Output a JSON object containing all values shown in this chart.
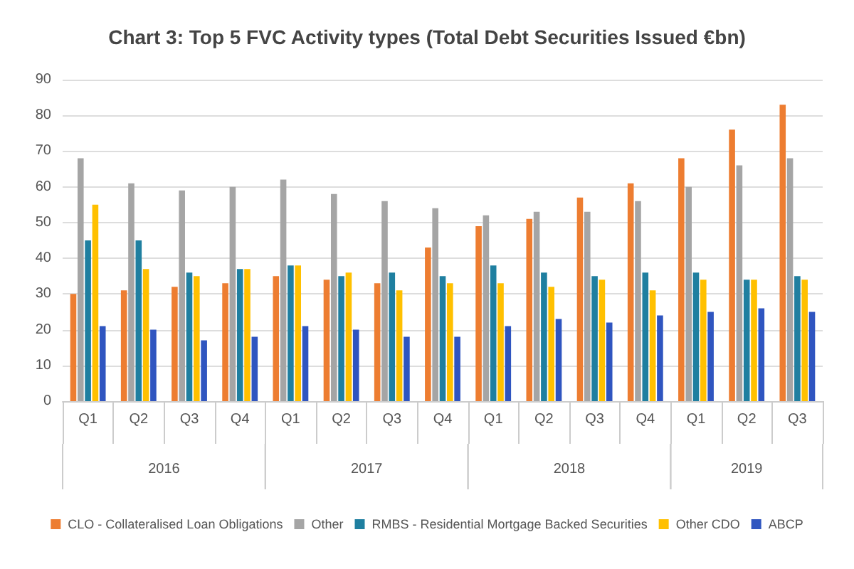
{
  "chart_data": {
    "type": "bar",
    "title": "Chart 3: Top 5 FVC Activity types (Total Debt Securities Issued €bn)",
    "categories": [
      "Q1",
      "Q2",
      "Q3",
      "Q4",
      "Q1",
      "Q2",
      "Q3",
      "Q4",
      "Q1",
      "Q2",
      "Q3",
      "Q4",
      "Q1",
      "Q2",
      "Q3"
    ],
    "annotations": [
      "2016",
      "2017",
      "2018",
      "2019"
    ],
    "series": [
      {
        "name": "CLO - Collateralised Loan Obligations",
        "color": "#ed7d31",
        "values": [
          30,
          31,
          32,
          33,
          35,
          34,
          33,
          43,
          49,
          51,
          57,
          61,
          68,
          76,
          83
        ]
      },
      {
        "name": "Other",
        "color": "#a5a5a5",
        "values": [
          68,
          61,
          59,
          60,
          62,
          58,
          56,
          54,
          52,
          53,
          53,
          56,
          60,
          66,
          68
        ]
      },
      {
        "name": "RMBS - Residential Mortgage Backed Securities",
        "color": "#1f7fa0",
        "values": [
          45,
          45,
          36,
          37,
          38,
          35,
          36,
          35,
          38,
          36,
          35,
          36,
          36,
          34,
          35
        ]
      },
      {
        "name": "Other CDO",
        "color": "#ffc000",
        "values": [
          55,
          37,
          35,
          37,
          38,
          36,
          31,
          33,
          33,
          32,
          34,
          31,
          34,
          34,
          34
        ]
      },
      {
        "name": "ABCP",
        "color": "#2f55c0",
        "values": [
          21,
          20,
          17,
          18,
          21,
          20,
          18,
          18,
          21,
          23,
          22,
          24,
          25,
          26,
          25
        ]
      }
    ],
    "ylim": [
      0,
      90
    ],
    "yticks": [
      0,
      10,
      20,
      30,
      40,
      50,
      60,
      70,
      80,
      90
    ],
    "grid": "y",
    "legend": "bottom"
  }
}
